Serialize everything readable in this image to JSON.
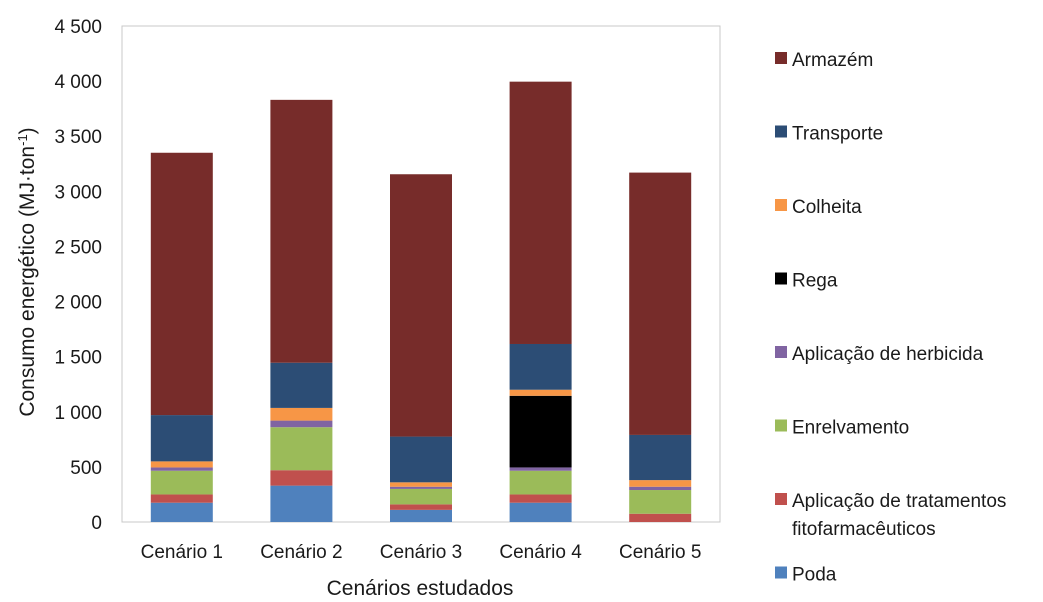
{
  "chart_data": {
    "type": "bar",
    "stacked": true,
    "categories": [
      "Cenário 1",
      "Cenário 2",
      "Cenário 3",
      "Cenário 4",
      "Cenário 5"
    ],
    "xlabel": "Cenários estudados",
    "ylabel": "Consumo energético (MJ·ton",
    "ylabel_sup": "-1",
    "ylabel_close": ")",
    "ylim": [
      0,
      4500
    ],
    "y_ticks": [
      {
        "value": 0,
        "label": "0"
      },
      {
        "value": 500,
        "label": "500"
      },
      {
        "value": 1000,
        "label": "1 000"
      },
      {
        "value": 1500,
        "label": "1 500"
      },
      {
        "value": 2000,
        "label": "2 000"
      },
      {
        "value": 2500,
        "label": "2 500"
      },
      {
        "value": 3000,
        "label": "3 000"
      },
      {
        "value": 3500,
        "label": "3 500"
      },
      {
        "value": 4000,
        "label": "4 000"
      },
      {
        "value": 4500,
        "label": "4 500"
      }
    ],
    "grid": false,
    "legend_position": "right",
    "series": [
      {
        "name": "Poda",
        "color": "#4f81bd",
        "values": [
          175,
          330,
          110,
          175,
          0
        ]
      },
      {
        "name": "Aplicação de tratamentos fitofarmacêuticos",
        "color": "#c0504d",
        "values": [
          75,
          140,
          50,
          75,
          75
        ]
      },
      {
        "name": "Enrelvamento",
        "color": "#9bbb59",
        "values": [
          215,
          390,
          140,
          215,
          215
        ]
      },
      {
        "name": "Aplicação de herbicida",
        "color": "#8064a2",
        "values": [
          30,
          60,
          20,
          30,
          30
        ]
      },
      {
        "name": "Rega",
        "color": "#000000",
        "values": [
          0,
          0,
          0,
          650,
          0
        ]
      },
      {
        "name": "Colheita",
        "color": "#f79646",
        "values": [
          55,
          115,
          40,
          55,
          60
        ]
      },
      {
        "name": "Transporte",
        "color": "#2c4d75",
        "values": [
          420,
          410,
          415,
          415,
          410
        ]
      },
      {
        "name": "Armazém",
        "color": "#772c2a",
        "values": [
          2380,
          2385,
          2380,
          2380,
          2380
        ]
      }
    ],
    "legend_lines": {
      "Aplicação de tratamentos fitofarmacêuticos": [
        "Aplicação de tratamentos",
        "fitofarmacêuticos"
      ]
    }
  }
}
